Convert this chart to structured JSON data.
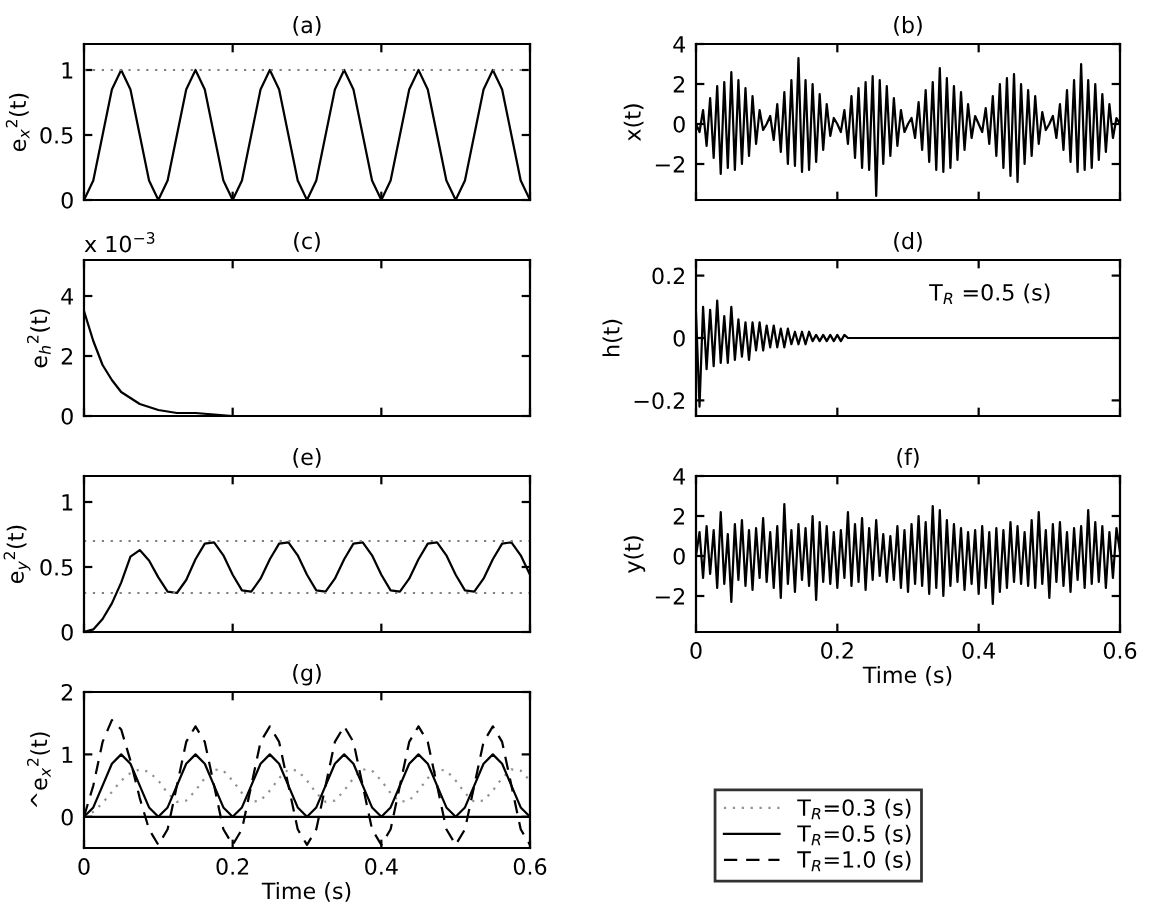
{
  "chart_data": [
    {
      "type": "line",
      "title": "(a)",
      "ylabel": "e$_{x}$$^{2}$(t)",
      "xlim": [
        0,
        0.6
      ],
      "xticks": [
        0,
        0.2,
        0.4,
        0.6
      ],
      "ylim": [
        0,
        1.2
      ],
      "yticks": [
        0,
        0.5,
        1
      ],
      "tick_labels": "y",
      "x": [
        0,
        0.0125,
        0.025,
        0.0375,
        0.05,
        0.0625,
        0.075,
        0.0875,
        0.1,
        0.1125,
        0.125,
        0.1375,
        0.15,
        0.1625,
        0.175,
        0.1875,
        0.2,
        0.2125,
        0.225,
        0.2375,
        0.25,
        0.2625,
        0.275,
        0.2875,
        0.3,
        0.3125,
        0.325,
        0.3375,
        0.35,
        0.3625,
        0.375,
        0.3875,
        0.4,
        0.4125,
        0.425,
        0.4375,
        0.45,
        0.4625,
        0.475,
        0.4875,
        0.5,
        0.5125,
        0.525,
        0.5375,
        0.55,
        0.5625,
        0.575,
        0.5875,
        0.6
      ],
      "series": [
        {
          "color": "#000000",
          "line_style": "solid",
          "values": [
            0,
            0.15,
            0.5,
            0.85,
            1,
            0.85,
            0.5,
            0.15,
            0,
            0.15,
            0.5,
            0.85,
            1,
            0.85,
            0.5,
            0.15,
            0,
            0.15,
            0.5,
            0.85,
            1,
            0.85,
            0.5,
            0.15,
            0,
            0.15,
            0.5,
            0.85,
            1,
            0.85,
            0.5,
            0.15,
            0,
            0.15,
            0.5,
            0.85,
            1,
            0.85,
            0.5,
            0.15,
            0,
            0.15,
            0.5,
            0.85,
            1,
            0.85,
            0.5,
            0.15,
            0
          ]
        }
      ],
      "ref_lines": [
        {
          "axis": "y",
          "value": 1,
          "color": "#808080",
          "line_style": "dotted"
        }
      ]
    },
    {
      "type": "line",
      "title": "(b)",
      "ylabel": "x(t)",
      "xlim": [
        0,
        0.6
      ],
      "xticks": [
        0,
        0.2,
        0.4,
        0.6
      ],
      "ylim": [
        -3.8,
        4
      ],
      "yticks": [
        -2,
        0,
        2,
        4
      ],
      "tick_labels": "y",
      "x": [
        0,
        0.005,
        0.01,
        0.015,
        0.02,
        0.025,
        0.03,
        0.035,
        0.04,
        0.045,
        0.05,
        0.055,
        0.06,
        0.065,
        0.07,
        0.075,
        0.08,
        0.085,
        0.09,
        0.095,
        0.1,
        0.105,
        0.11,
        0.115,
        0.12,
        0.125,
        0.13,
        0.135,
        0.14,
        0.145,
        0.15,
        0.155,
        0.16,
        0.165,
        0.17,
        0.175,
        0.18,
        0.185,
        0.19,
        0.195,
        0.2,
        0.205,
        0.21,
        0.215,
        0.22,
        0.225,
        0.23,
        0.235,
        0.24,
        0.245,
        0.25,
        0.255,
        0.26,
        0.265,
        0.27,
        0.275,
        0.28,
        0.285,
        0.29,
        0.295,
        0.3,
        0.305,
        0.31,
        0.315,
        0.32,
        0.325,
        0.33,
        0.335,
        0.34,
        0.345,
        0.35,
        0.355,
        0.36,
        0.365,
        0.37,
        0.375,
        0.38,
        0.385,
        0.39,
        0.395,
        0.4,
        0.405,
        0.41,
        0.415,
        0.42,
        0.425,
        0.43,
        0.435,
        0.44,
        0.445,
        0.45,
        0.455,
        0.46,
        0.465,
        0.47,
        0.475,
        0.48,
        0.485,
        0.49,
        0.495,
        0.5,
        0.505,
        0.51,
        0.515,
        0.52,
        0.525,
        0.53,
        0.535,
        0.54,
        0.545,
        0.55,
        0.555,
        0.56,
        0.565,
        0.57,
        0.575,
        0.58,
        0.585,
        0.59,
        0.595,
        0.6
      ],
      "series": [
        {
          "color": "#000000",
          "line_style": "solid",
          "values": [
            0,
            -0.4,
            0.7,
            -1.1,
            1.3,
            -1.7,
            1.9,
            -2.5,
            2.1,
            -2.2,
            2.6,
            -2.3,
            2.2,
            -2.0,
            1.8,
            -1.6,
            1.4,
            -1.0,
            0.7,
            -0.3,
            0,
            0.4,
            -0.8,
            1.0,
            -1.4,
            1.6,
            -2.0,
            2.2,
            -2.1,
            3.3,
            -2.4,
            2.2,
            -2.3,
            2.0,
            -1.9,
            1.5,
            -1.3,
            1.0,
            -0.6,
            0.3,
            0,
            -0.4,
            0.7,
            -1.0,
            1.4,
            -1.7,
            1.8,
            -2.2,
            2.1,
            -2.3,
            2.4,
            -3.6,
            2.2,
            -2.0,
            1.9,
            -1.6,
            1.3,
            -1.1,
            0.7,
            -0.4,
            0,
            0.3,
            -0.7,
            1.1,
            -1.3,
            1.7,
            -1.9,
            2.1,
            -2.3,
            2.8,
            -2.4,
            2.3,
            -2.2,
            1.9,
            -1.8,
            1.6,
            -1.3,
            1.0,
            -0.7,
            0.4,
            0,
            -0.4,
            0.8,
            -1.0,
            1.4,
            -1.6,
            2.0,
            -2.2,
            2.3,
            -2.6,
            2.5,
            -2.9,
            2.0,
            -2.0,
            1.7,
            -1.6,
            1.4,
            -1.0,
            0.6,
            -0.3,
            0,
            0.4,
            -0.7,
            1.0,
            -1.3,
            1.7,
            -1.9,
            2.2,
            -2.4,
            3.0,
            -2.3,
            2.2,
            -2.2,
            2.0,
            -1.8,
            1.5,
            -1.4,
            1.0,
            -0.7,
            0.3,
            0
          ]
        }
      ]
    },
    {
      "type": "line",
      "title": "(c)",
      "ylabel": "e$_{h}$$^{2}$(t)",
      "xlim": [
        0,
        0.6
      ],
      "xticks": [
        0,
        0.2,
        0.4,
        0.6
      ],
      "ylim": [
        0,
        5.2
      ],
      "yticks": [
        0,
        2,
        4
      ],
      "tick_labels": "y",
      "annotations": [
        "x 10$^{−3}$"
      ],
      "x": [
        0,
        0.0125,
        0.025,
        0.0375,
        0.05,
        0.075,
        0.1,
        0.125,
        0.15,
        0.2,
        0.25
      ],
      "series": [
        {
          "color": "#000000",
          "line_style": "solid",
          "values": [
            3.5,
            2.5,
            1.7,
            1.2,
            0.8,
            0.4,
            0.2,
            0.1,
            0.1,
            0,
            0
          ]
        }
      ]
    },
    {
      "type": "line",
      "title": "(d)",
      "ylabel": "h(t)",
      "xlim": [
        0,
        0.6
      ],
      "xticks": [
        0,
        0.2,
        0.4,
        0.6
      ],
      "ylim": [
        -0.25,
        0.25
      ],
      "yticks": [
        -0.2,
        0,
        0.2
      ],
      "tick_labels": "y",
      "annotations": [
        "T$_{R}$ =0.5 (s)"
      ],
      "x": [
        0,
        0.005,
        0.01,
        0.015,
        0.02,
        0.025,
        0.03,
        0.035,
        0.04,
        0.045,
        0.05,
        0.055,
        0.06,
        0.065,
        0.07,
        0.075,
        0.08,
        0.085,
        0.09,
        0.095,
        0.1,
        0.105,
        0.11,
        0.115,
        0.12,
        0.125,
        0.13,
        0.135,
        0.14,
        0.145,
        0.15,
        0.155,
        0.16,
        0.165,
        0.17,
        0.175,
        0.18,
        0.185,
        0.19,
        0.195,
        0.2,
        0.205,
        0.21,
        0.215,
        0.22,
        0.225,
        0.23,
        0.235,
        0.24,
        0.245,
        0.25,
        0.255,
        0.26,
        0.265,
        0.27,
        0.275,
        0.28,
        0.285,
        0.29,
        0.295,
        0.3,
        0.6
      ],
      "series": [
        {
          "color": "#000000",
          "line_style": "solid",
          "values": [
            0.08,
            -0.22,
            0.1,
            -0.1,
            0.09,
            -0.09,
            0.12,
            -0.08,
            0.07,
            -0.08,
            0.1,
            -0.07,
            0.06,
            -0.06,
            0.05,
            -0.07,
            0.05,
            -0.04,
            0.05,
            -0.04,
            0.04,
            -0.03,
            0.04,
            -0.03,
            0.03,
            -0.03,
            0.03,
            -0.02,
            0.02,
            -0.02,
            0.02,
            -0.02,
            0.02,
            -0.01,
            0.01,
            -0.01,
            0.01,
            -0.01,
            0.01,
            -0.01,
            0.01,
            -0.01,
            0.01,
            0,
            0,
            0,
            0,
            0,
            0,
            0,
            0,
            0,
            0,
            0,
            0,
            0,
            0,
            0,
            0,
            0,
            0,
            0
          ]
        }
      ]
    },
    {
      "type": "line",
      "title": "(e)",
      "ylabel": "e$_{y}$$^{2}$(t)",
      "xlim": [
        0,
        0.6
      ],
      "xticks": [
        0,
        0.2,
        0.4,
        0.6
      ],
      "ylim": [
        0,
        1.2
      ],
      "yticks": [
        0,
        0.5,
        1
      ],
      "tick_labels": "y",
      "x": [
        0,
        0.0125,
        0.025,
        0.0375,
        0.05,
        0.0625,
        0.075,
        0.0875,
        0.1,
        0.1125,
        0.125,
        0.1375,
        0.15,
        0.1625,
        0.175,
        0.1875,
        0.2,
        0.2125,
        0.225,
        0.2375,
        0.25,
        0.2625,
        0.275,
        0.2875,
        0.3,
        0.3125,
        0.325,
        0.3375,
        0.35,
        0.3625,
        0.375,
        0.3875,
        0.4,
        0.4125,
        0.425,
        0.4375,
        0.45,
        0.4625,
        0.475,
        0.4875,
        0.5,
        0.5125,
        0.525,
        0.5375,
        0.55,
        0.5625,
        0.575,
        0.5875,
        0.6
      ],
      "series": [
        {
          "color": "#000000",
          "line_style": "solid",
          "values": [
            0,
            0.02,
            0.1,
            0.22,
            0.38,
            0.58,
            0.63,
            0.55,
            0.42,
            0.31,
            0.3,
            0.4,
            0.56,
            0.68,
            0.69,
            0.59,
            0.44,
            0.32,
            0.31,
            0.41,
            0.56,
            0.68,
            0.69,
            0.59,
            0.44,
            0.32,
            0.31,
            0.41,
            0.56,
            0.68,
            0.69,
            0.59,
            0.44,
            0.32,
            0.31,
            0.41,
            0.56,
            0.68,
            0.69,
            0.59,
            0.44,
            0.32,
            0.31,
            0.41,
            0.56,
            0.68,
            0.69,
            0.59,
            0.44
          ]
        }
      ],
      "ref_lines": [
        {
          "axis": "y",
          "value": 0.3,
          "color": "#808080",
          "line_style": "dotted"
        },
        {
          "axis": "y",
          "value": 0.7,
          "color": "#808080",
          "line_style": "dotted"
        }
      ]
    },
    {
      "type": "line",
      "title": "(f)",
      "ylabel": "y(t)",
      "xlabel": "Time (s)",
      "xlim": [
        0,
        0.6
      ],
      "xticks": [
        0,
        0.2,
        0.4,
        0.6
      ],
      "ylim": [
        -3.8,
        4
      ],
      "yticks": [
        -2,
        0,
        2,
        4
      ],
      "x": [
        0,
        0.005,
        0.01,
        0.015,
        0.02,
        0.025,
        0.03,
        0.035,
        0.04,
        0.045,
        0.05,
        0.055,
        0.06,
        0.065,
        0.07,
        0.075,
        0.08,
        0.085,
        0.09,
        0.095,
        0.1,
        0.105,
        0.11,
        0.115,
        0.12,
        0.125,
        0.13,
        0.135,
        0.14,
        0.145,
        0.15,
        0.155,
        0.16,
        0.165,
        0.17,
        0.175,
        0.18,
        0.185,
        0.19,
        0.195,
        0.2,
        0.205,
        0.21,
        0.215,
        0.22,
        0.225,
        0.23,
        0.235,
        0.24,
        0.245,
        0.25,
        0.255,
        0.26,
        0.265,
        0.27,
        0.275,
        0.28,
        0.285,
        0.29,
        0.295,
        0.3,
        0.305,
        0.31,
        0.315,
        0.32,
        0.325,
        0.33,
        0.335,
        0.34,
        0.345,
        0.35,
        0.355,
        0.36,
        0.365,
        0.37,
        0.375,
        0.38,
        0.385,
        0.39,
        0.395,
        0.4,
        0.405,
        0.41,
        0.415,
        0.42,
        0.425,
        0.43,
        0.435,
        0.44,
        0.445,
        0.45,
        0.455,
        0.46,
        0.465,
        0.47,
        0.475,
        0.48,
        0.485,
        0.49,
        0.495,
        0.5,
        0.505,
        0.51,
        0.515,
        0.52,
        0.525,
        0.53,
        0.535,
        0.54,
        0.545,
        0.55,
        0.555,
        0.56,
        0.565,
        0.57,
        0.575,
        0.58,
        0.585,
        0.59,
        0.595,
        0.6
      ],
      "series": [
        {
          "color": "#000000",
          "line_style": "solid",
          "values": [
            0,
            1.2,
            -1.1,
            1.5,
            -0.9,
            1.3,
            -1.6,
            2.2,
            -1.4,
            1.1,
            -2.3,
            1.6,
            -1.2,
            1.8,
            -1.5,
            1.3,
            -1.7,
            1.4,
            -1.1,
            1.9,
            -1.3,
            1.2,
            -1.6,
            1.5,
            -2.1,
            2.6,
            -1.4,
            1.3,
            -1.8,
            1.6,
            -1.2,
            1.4,
            -1.5,
            2.0,
            -2.2,
            1.7,
            -1.3,
            1.5,
            -1.4,
            1.2,
            -1.6,
            1.3,
            -1.1,
            2.2,
            -1.5,
            1.6,
            -1.3,
            1.9,
            -1.7,
            1.4,
            -1.2,
            1.8,
            -1.0,
            1.1,
            -1.3,
            1.0,
            -1.2,
            1.5,
            -1.6,
            1.3,
            -1.8,
            1.6,
            -1.4,
            2.0,
            -1.5,
            1.7,
            -1.9,
            2.5,
            -1.6,
            2.3,
            -2.0,
            1.8,
            -1.5,
            1.6,
            -1.3,
            1.4,
            -1.7,
            1.2,
            -1.4,
            1.3,
            -1.9,
            1.5,
            -1.6,
            1.2,
            -2.4,
            1.4,
            -1.8,
            1.3,
            -1.6,
            1.7,
            -1.3,
            1.5,
            -1.4,
            1.2,
            -1.5,
            1.8,
            -1.6,
            2.2,
            -1.4,
            1.3,
            -2.1,
            1.6,
            -1.3,
            1.7,
            -1.5,
            1.2,
            -1.8,
            1.4,
            -1.2,
            1.5,
            -1.6,
            2.3,
            -1.4,
            1.7,
            -1.3,
            1.5,
            -1.6,
            1.2,
            -1.1,
            1.4,
            0.2
          ]
        }
      ]
    },
    {
      "type": "line",
      "title": "(g)",
      "ylabel": "^e$_{x}$$^{2}$(t)",
      "xlabel": "Time (s)",
      "xlim": [
        0,
        0.6
      ],
      "xticks": [
        0,
        0.2,
        0.4,
        0.6
      ],
      "ylim": [
        -0.5,
        2
      ],
      "yticks": [
        0,
        1,
        2
      ],
      "legend": "right",
      "x": [
        0,
        0.0125,
        0.025,
        0.0375,
        0.05,
        0.0625,
        0.075,
        0.0875,
        0.1,
        0.1125,
        0.125,
        0.1375,
        0.15,
        0.1625,
        0.175,
        0.1875,
        0.2,
        0.2125,
        0.225,
        0.2375,
        0.25,
        0.2625,
        0.275,
        0.2875,
        0.3,
        0.3125,
        0.325,
        0.3375,
        0.35,
        0.3625,
        0.375,
        0.3875,
        0.4,
        0.4125,
        0.425,
        0.4375,
        0.45,
        0.4625,
        0.475,
        0.4875,
        0.5,
        0.5125,
        0.525,
        0.5375,
        0.55,
        0.5625,
        0.575,
        0.5875,
        0.6
      ],
      "series": [
        {
          "name": "T$_{R}$=0.3 (s)",
          "color": "#909090",
          "line_style": "dotted",
          "values": [
            0,
            0.08,
            0.22,
            0.4,
            0.58,
            0.7,
            0.76,
            0.72,
            0.58,
            0.38,
            0.24,
            0.26,
            0.42,
            0.62,
            0.76,
            0.74,
            0.58,
            0.38,
            0.24,
            0.26,
            0.42,
            0.62,
            0.76,
            0.74,
            0.58,
            0.38,
            0.24,
            0.26,
            0.42,
            0.62,
            0.76,
            0.74,
            0.58,
            0.38,
            0.24,
            0.26,
            0.42,
            0.62,
            0.76,
            0.74,
            0.58,
            0.38,
            0.24,
            0.26,
            0.42,
            0.62,
            0.76,
            0.74,
            0.58
          ]
        },
        {
          "name": "T$_{R}$=0.5 (s)",
          "color": "#000000",
          "line_style": "solid",
          "values": [
            0,
            0.15,
            0.5,
            0.85,
            1,
            0.85,
            0.5,
            0.15,
            0,
            0.15,
            0.5,
            0.85,
            1,
            0.85,
            0.5,
            0.15,
            0,
            0.15,
            0.5,
            0.85,
            1,
            0.85,
            0.5,
            0.15,
            0,
            0.15,
            0.5,
            0.85,
            1,
            0.85,
            0.5,
            0.15,
            0,
            0.15,
            0.5,
            0.85,
            1,
            0.85,
            0.5,
            0.15,
            0,
            0.15,
            0.5,
            0.85,
            1,
            0.85,
            0.5,
            0.15,
            0
          ]
        },
        {
          "name": "T$_{R}$=1.0 (s)",
          "color": "#000000",
          "line_style": "dashed",
          "values": [
            0,
            0.5,
            1.2,
            1.55,
            1.4,
            0.9,
            0.3,
            -0.2,
            -0.45,
            -0.2,
            0.5,
            1.2,
            1.45,
            1.2,
            0.5,
            -0.2,
            -0.45,
            -0.2,
            0.5,
            1.2,
            1.45,
            1.2,
            0.5,
            -0.2,
            -0.45,
            -0.2,
            0.5,
            1.2,
            1.45,
            1.2,
            0.5,
            -0.2,
            -0.45,
            -0.2,
            0.5,
            1.2,
            1.45,
            1.2,
            0.5,
            -0.2,
            -0.45,
            -0.2,
            0.5,
            1.2,
            1.45,
            1.2,
            0.5,
            -0.2,
            -0.45
          ]
        }
      ],
      "ref_lines": [
        {
          "axis": "y",
          "value": 0,
          "color": "#000000",
          "line_style": "solid"
        }
      ]
    }
  ]
}
